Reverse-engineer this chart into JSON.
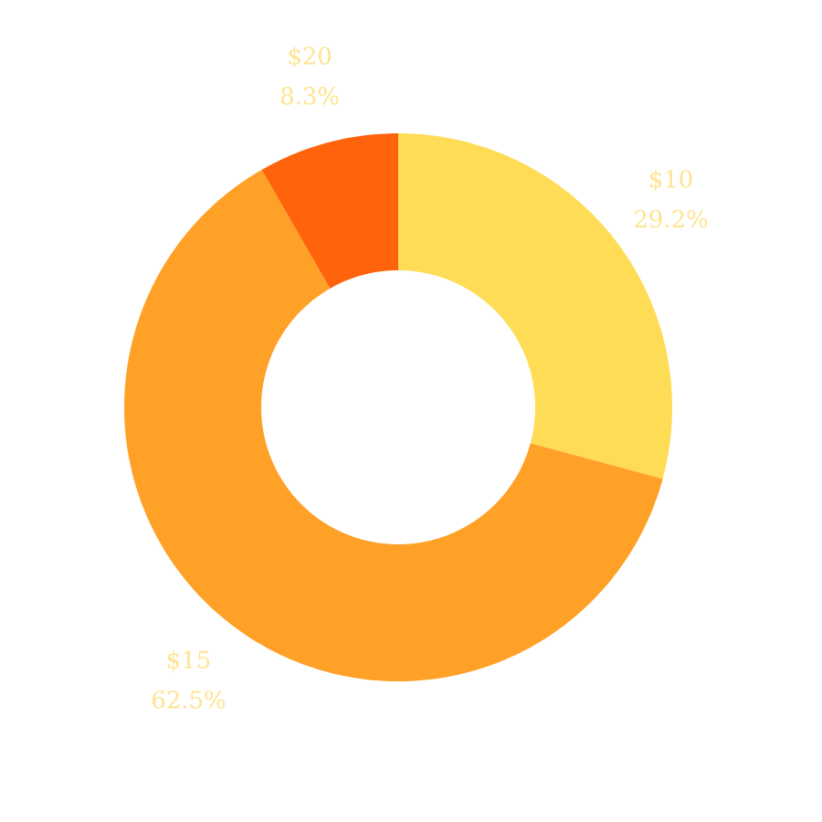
{
  "chart_data": {
    "type": "donut",
    "categories": [
      "$10",
      "$15",
      "$20"
    ],
    "values": [
      29.2,
      62.5,
      8.3
    ],
    "colors": [
      "#ffdc55",
      "#ffa127",
      "#ff640c"
    ],
    "value_labels": [
      "29.2%",
      "62.5%",
      "8.3%"
    ]
  }
}
